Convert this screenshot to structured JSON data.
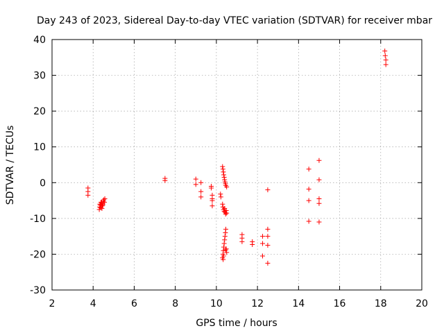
{
  "chart_data": {
    "type": "scatter",
    "title": "Day 243 of 2023, Sidereal Day-to-day VTEC variation (SDTVAR) for receiver mbar",
    "xlabel": "GPS time / hours",
    "ylabel": "SDTVAR / TECUs",
    "xlim": [
      2,
      20
    ],
    "ylim": [
      -30,
      40
    ],
    "xticks": [
      2,
      4,
      6,
      8,
      10,
      12,
      14,
      16,
      18,
      20
    ],
    "yticks": [
      -30,
      -20,
      -10,
      0,
      10,
      20,
      30,
      40
    ],
    "grid": true,
    "marker": "+",
    "color": "#ff0000",
    "series": [
      {
        "name": "SDTVAR",
        "points": [
          [
            3.75,
            -1.5
          ],
          [
            3.75,
            -2.5
          ],
          [
            3.75,
            -3.5
          ],
          [
            4.3,
            -7.5
          ],
          [
            4.32,
            -6.8
          ],
          [
            4.35,
            -6.3
          ],
          [
            4.37,
            -7.0
          ],
          [
            4.4,
            -6.0
          ],
          [
            4.42,
            -5.5
          ],
          [
            4.45,
            -6.5
          ],
          [
            4.47,
            -5.8
          ],
          [
            4.5,
            -5.2
          ],
          [
            4.52,
            -4.8
          ],
          [
            4.55,
            -5.5
          ],
          [
            4.57,
            -4.5
          ],
          [
            4.38,
            -5.5
          ],
          [
            4.48,
            -6.2
          ],
          [
            4.33,
            -6.0
          ],
          [
            4.43,
            -7.2
          ],
          [
            7.5,
            1.2
          ],
          [
            7.5,
            0.6
          ],
          [
            9.0,
            1.0
          ],
          [
            9.0,
            -0.5
          ],
          [
            9.25,
            0.0
          ],
          [
            9.25,
            -2.5
          ],
          [
            9.25,
            -4.0
          ],
          [
            9.75,
            -1.0
          ],
          [
            9.75,
            -1.5
          ],
          [
            9.8,
            -3.5
          ],
          [
            9.8,
            -4.5
          ],
          [
            9.8,
            -5.0
          ],
          [
            9.8,
            -6.5
          ],
          [
            10.2,
            -3.2
          ],
          [
            10.22,
            -4.0
          ],
          [
            10.3,
            4.5
          ],
          [
            10.32,
            3.8
          ],
          [
            10.34,
            3.0
          ],
          [
            10.36,
            2.2
          ],
          [
            10.38,
            1.5
          ],
          [
            10.4,
            0.8
          ],
          [
            10.42,
            0.2
          ],
          [
            10.44,
            -0.3
          ],
          [
            10.46,
            -0.8
          ],
          [
            10.5,
            -1.2
          ],
          [
            10.3,
            -6.0
          ],
          [
            10.32,
            -6.8
          ],
          [
            10.35,
            -7.5
          ],
          [
            10.38,
            -8.0
          ],
          [
            10.4,
            -7.2
          ],
          [
            10.42,
            -8.3
          ],
          [
            10.45,
            -8.8
          ],
          [
            10.48,
            -7.8
          ],
          [
            10.5,
            -8.5
          ],
          [
            10.3,
            -21.0
          ],
          [
            10.32,
            -20.0
          ],
          [
            10.34,
            -19.0
          ],
          [
            10.36,
            -18.0
          ],
          [
            10.38,
            -17.0
          ],
          [
            10.4,
            -16.0
          ],
          [
            10.42,
            -15.0
          ],
          [
            10.44,
            -14.0
          ],
          [
            10.46,
            -13.0
          ],
          [
            10.48,
            -18.5
          ],
          [
            10.5,
            -19.5
          ],
          [
            10.35,
            -20.5
          ],
          [
            10.45,
            -18.8
          ],
          [
            10.33,
            -21.5
          ],
          [
            11.25,
            -14.5
          ],
          [
            11.25,
            -15.5
          ],
          [
            11.25,
            -16.5
          ],
          [
            11.75,
            -16.5
          ],
          [
            11.75,
            -17.3
          ],
          [
            12.25,
            -15.0
          ],
          [
            12.25,
            -17.0
          ],
          [
            12.25,
            -20.5
          ],
          [
            12.5,
            -2.0
          ],
          [
            12.5,
            -13.0
          ],
          [
            12.5,
            -15.0
          ],
          [
            12.5,
            -17.5
          ],
          [
            12.5,
            -22.5
          ],
          [
            14.5,
            3.8
          ],
          [
            14.5,
            -1.8
          ],
          [
            14.5,
            -5.0
          ],
          [
            14.5,
            -10.8
          ],
          [
            15.0,
            6.2
          ],
          [
            15.0,
            0.8
          ],
          [
            15.0,
            -4.5
          ],
          [
            15.0,
            -5.8
          ],
          [
            15.0,
            -11.0
          ],
          [
            18.2,
            36.8
          ],
          [
            18.22,
            35.5
          ],
          [
            18.25,
            34.3
          ],
          [
            18.25,
            33.0
          ]
        ]
      }
    ]
  }
}
